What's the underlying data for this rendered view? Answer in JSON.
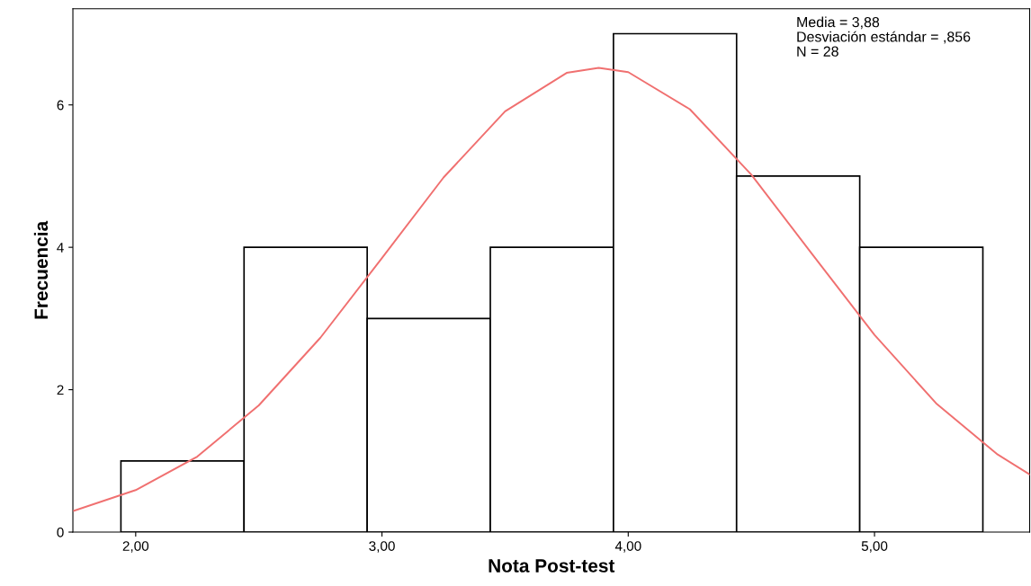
{
  "chart_data": {
    "type": "histogram",
    "bins": [
      1.94,
      2.44,
      2.94,
      3.44,
      3.94,
      4.44,
      4.94,
      5.44
    ],
    "values": [
      1,
      4,
      3,
      4,
      7,
      5,
      4
    ],
    "color": "#ffffff",
    "xlabel": "Nota Post-test",
    "ylabel": "Frecuencia",
    "xlim": [
      1.745,
      5.63
    ],
    "ylim": [
      0,
      7.35
    ],
    "xticks": [
      {
        "value": 2,
        "label": "2,00"
      },
      {
        "value": 3,
        "label": "3,00"
      },
      {
        "value": 4,
        "label": "4,00"
      },
      {
        "value": 5,
        "label": "5,00"
      }
    ],
    "yticks": [
      0,
      2,
      4,
      6
    ],
    "grid": false,
    "legend": false,
    "annotations": [
      "Media = 3,88",
      "Desviación estándar = ,856",
      "N = 28"
    ],
    "series": [
      {
        "type": "line",
        "color": "#f07070",
        "x": [
          1.75,
          2.0,
          2.25,
          2.5,
          2.75,
          3.0,
          3.25,
          3.5,
          3.75,
          3.88,
          4.0,
          4.25,
          4.5,
          4.75,
          5.0,
          5.25,
          5.5,
          5.63
        ],
        "values": [
          0.3,
          0.59,
          1.06,
          1.78,
          2.73,
          3.85,
          4.98,
          5.91,
          6.45,
          6.52,
          6.46,
          5.94,
          5.02,
          3.89,
          2.77,
          1.81,
          1.09,
          0.81
        ]
      }
    ]
  }
}
